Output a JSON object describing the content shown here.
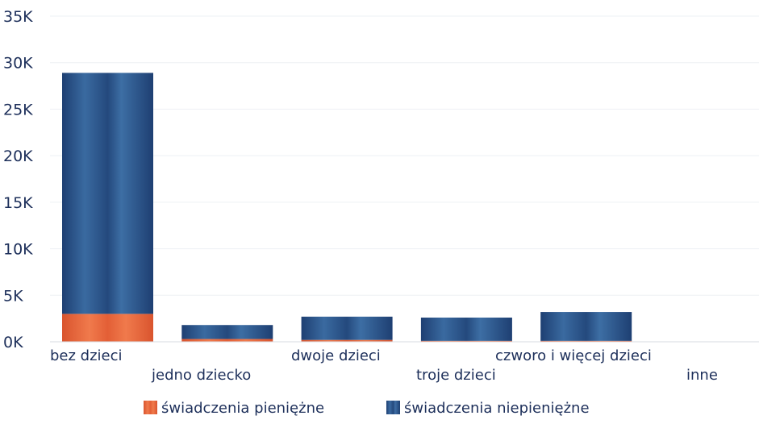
{
  "chart_data": {
    "type": "bar",
    "stacked": true,
    "categories": [
      "bez dzieci",
      "jedno dziecko",
      "dwoje dzieci",
      "troje dzieci",
      "czworo i więcej dzieci",
      "inne"
    ],
    "series": [
      {
        "name": "świadczenia pieniężne",
        "color": "#e8643a",
        "values": [
          3000,
          300,
          200,
          100,
          100,
          0
        ]
      },
      {
        "name": "świadczenia niepieniężne",
        "color": "#2b5a8c",
        "values": [
          25900,
          1500,
          2500,
          2500,
          3100,
          0
        ]
      }
    ],
    "yticks": [
      "0K",
      "5K",
      "10K",
      "15K",
      "20K",
      "25K",
      "30K",
      "35K"
    ],
    "ylim": [
      0,
      35000
    ],
    "legend_position": "bottom",
    "title": "",
    "xlabel": "",
    "ylabel": ""
  }
}
